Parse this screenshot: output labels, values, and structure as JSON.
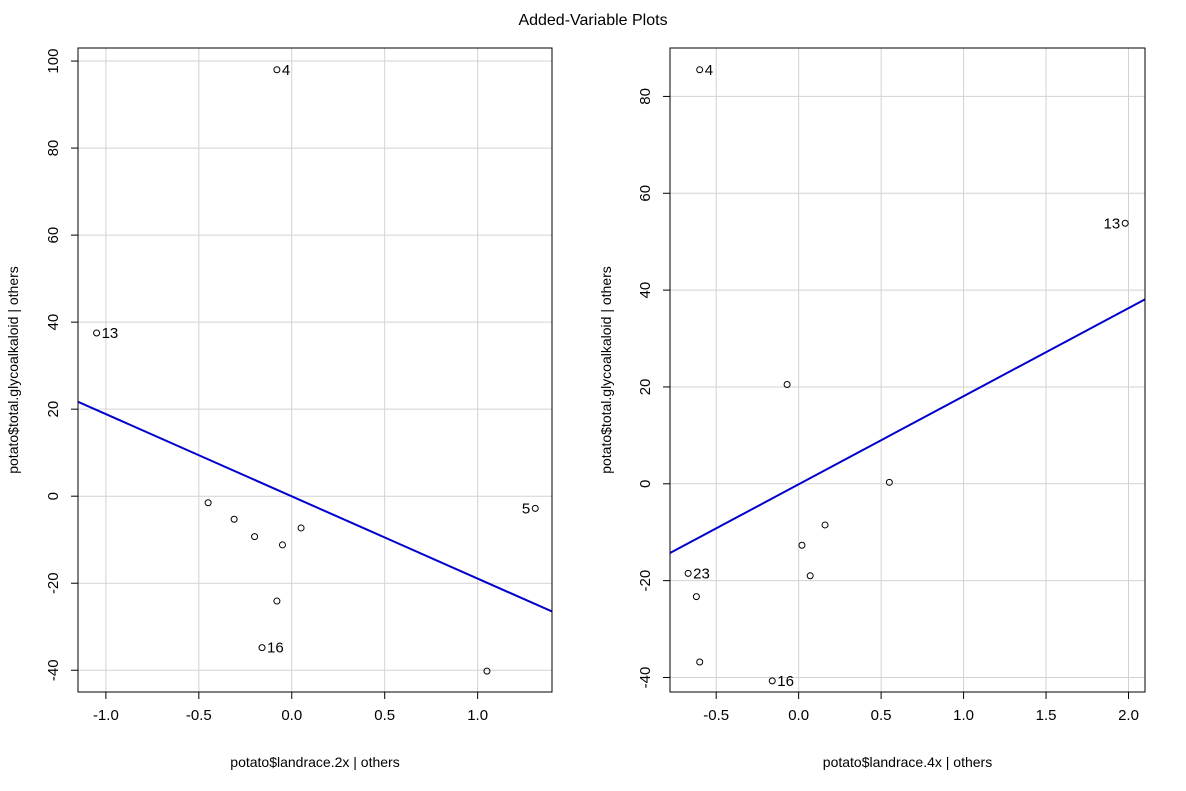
{
  "title": "Added-Variable Plots",
  "chart_data": [
    {
      "type": "scatter",
      "xlabel": "potato$landrace.2x | others",
      "ylabel": "potato$total.glycoalkaloid  | others",
      "xlim": [
        -1.15,
        1.4
      ],
      "ylim": [
        -45,
        103
      ],
      "xticks": [
        -1.0,
        -0.5,
        0.0,
        0.5,
        1.0
      ],
      "xtick_labels": [
        "-1.0",
        "-0.5",
        "0.0",
        "0.5",
        "1.0"
      ],
      "yticks": [
        -40,
        -20,
        0,
        20,
        40,
        60,
        80,
        100
      ],
      "ytick_labels": [
        "-40",
        "-20",
        "0",
        "20",
        "40",
        "60",
        "80",
        "100"
      ],
      "grid": true,
      "points": [
        {
          "x": -0.08,
          "y": 98,
          "label": "4",
          "label_side": "right"
        },
        {
          "x": -1.05,
          "y": 37.5,
          "label": "13",
          "label_side": "right"
        },
        {
          "x": 1.31,
          "y": -2.8,
          "label": "5",
          "label_side": "left"
        },
        {
          "x": -0.45,
          "y": -1.5,
          "label": ""
        },
        {
          "x": -0.31,
          "y": -5.3,
          "label": ""
        },
        {
          "x": -0.2,
          "y": -9.3,
          "label": ""
        },
        {
          "x": 0.05,
          "y": -7.3,
          "label": ""
        },
        {
          "x": -0.05,
          "y": -11.2,
          "label": ""
        },
        {
          "x": -0.08,
          "y": -24.1,
          "label": ""
        },
        {
          "x": -0.16,
          "y": -34.8,
          "label": "16",
          "label_side": "right"
        },
        {
          "x": 1.05,
          "y": -40.2,
          "label": ""
        }
      ],
      "fit_line": {
        "x": [
          -1.15,
          1.4
        ],
        "y": [
          21.7,
          -26.5
        ]
      }
    },
    {
      "type": "scatter",
      "xlabel": "potato$landrace.4x | others",
      "ylabel": "potato$total.glycoalkaloid  | others",
      "xlim": [
        -0.78,
        2.1
      ],
      "ylim": [
        -43,
        90
      ],
      "xticks": [
        -0.5,
        0.0,
        0.5,
        1.0,
        1.5,
        2.0
      ],
      "xtick_labels": [
        "-0.5",
        "0.0",
        "0.5",
        "1.0",
        "1.5",
        "2.0"
      ],
      "yticks": [
        -40,
        -20,
        0,
        20,
        40,
        60,
        80
      ],
      "ytick_labels": [
        "-40",
        "-20",
        "0",
        "20",
        "40",
        "60",
        "80"
      ],
      "grid": true,
      "points": [
        {
          "x": -0.6,
          "y": 85.5,
          "label": "4",
          "label_side": "right"
        },
        {
          "x": 1.98,
          "y": 53.8,
          "label": "13",
          "label_side": "left"
        },
        {
          "x": -0.07,
          "y": 20.5,
          "label": ""
        },
        {
          "x": 0.55,
          "y": 0.3,
          "label": ""
        },
        {
          "x": 0.16,
          "y": -8.5,
          "label": ""
        },
        {
          "x": 0.02,
          "y": -12.7,
          "label": ""
        },
        {
          "x": 0.07,
          "y": -19.0,
          "label": ""
        },
        {
          "x": -0.67,
          "y": -18.5,
          "label": "23",
          "label_side": "right"
        },
        {
          "x": -0.62,
          "y": -23.3,
          "label": ""
        },
        {
          "x": -0.6,
          "y": -36.8,
          "label": ""
        },
        {
          "x": -0.16,
          "y": -40.7,
          "label": "16",
          "label_side": "right"
        }
      ],
      "fit_line": {
        "x": [
          -0.78,
          2.1
        ],
        "y": [
          -14.3,
          38.1
        ]
      }
    }
  ]
}
